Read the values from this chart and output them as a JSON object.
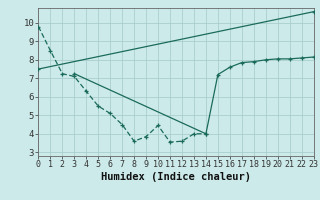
{
  "line1_x": [
    0,
    1,
    2,
    3,
    4,
    5,
    6,
    7,
    8,
    9,
    10,
    11,
    12,
    13,
    14
  ],
  "line1_y": [
    9.8,
    8.5,
    7.25,
    7.1,
    6.3,
    5.5,
    5.1,
    4.5,
    3.6,
    3.85,
    4.45,
    3.55,
    3.6,
    4.0,
    4.0
  ],
  "line2_x": [
    0,
    23
  ],
  "line2_y": [
    7.5,
    10.6
  ],
  "line3_x": [
    3,
    14,
    15,
    16,
    17,
    18,
    19,
    20,
    21,
    22,
    23
  ],
  "line3_y": [
    7.25,
    4.0,
    7.2,
    7.6,
    7.85,
    7.9,
    8.0,
    8.05,
    8.05,
    8.1,
    8.15
  ],
  "color": "#1a6b5a",
  "bg_color": "#cdeaea",
  "grid_color": "#aacece",
  "xlabel": "Humidex (Indice chaleur)",
  "xlim": [
    0,
    23
  ],
  "ylim": [
    2.8,
    10.8
  ],
  "yticks": [
    3,
    4,
    5,
    6,
    7,
    8,
    9,
    10
  ],
  "xticks": [
    0,
    1,
    2,
    3,
    4,
    5,
    6,
    7,
    8,
    9,
    10,
    11,
    12,
    13,
    14,
    15,
    16,
    17,
    18,
    19,
    20,
    21,
    22,
    23
  ],
  "font_size": 6.5
}
